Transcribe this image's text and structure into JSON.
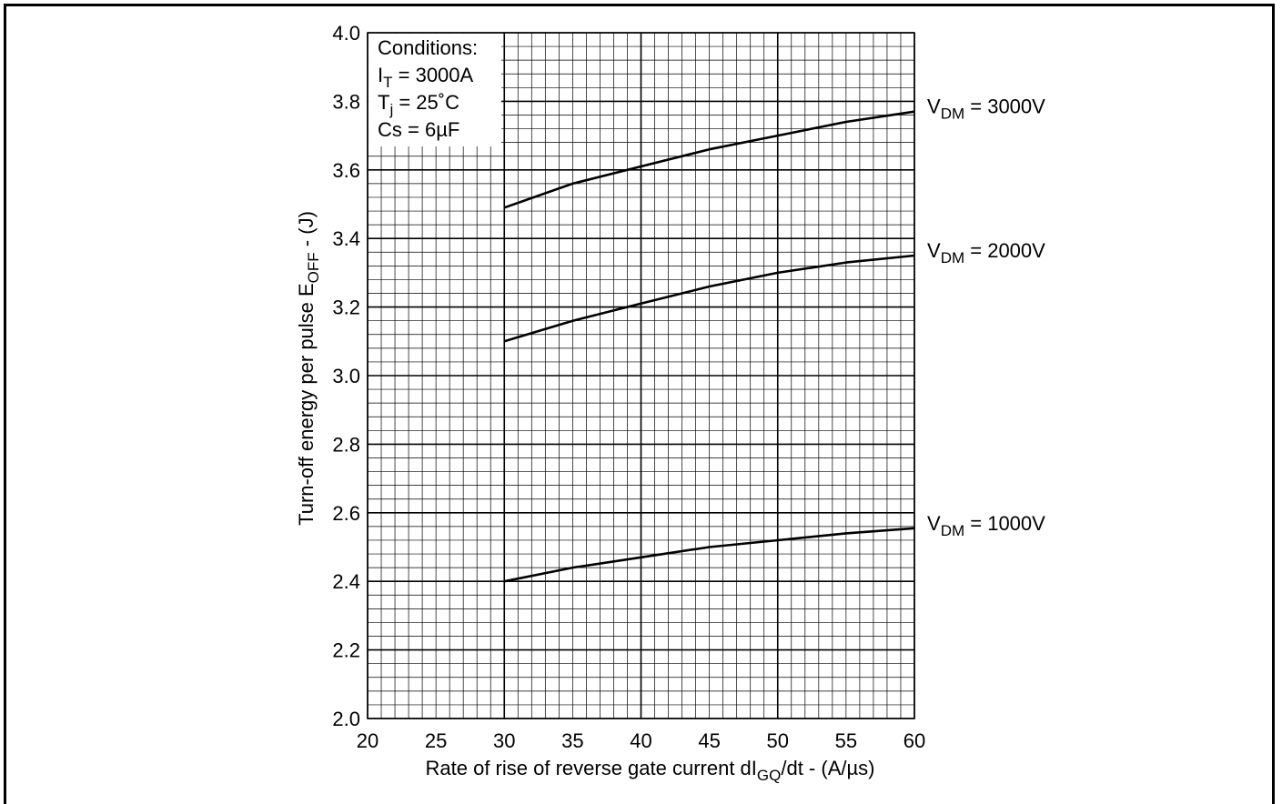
{
  "chart_data": {
    "type": "line",
    "title": "",
    "xlabel": {
      "pre": "Rate of rise of reverse gate current  dI",
      "sub": "GQ",
      "post": "/dt - (A/µs)"
    },
    "ylabel": {
      "pre": "Turn-off energy per pulse E",
      "sub": "OFF",
      "post": " - (J)"
    },
    "xlim": [
      20,
      60
    ],
    "ylim": [
      2.0,
      4.0
    ],
    "x_ticks": [
      "20",
      "25",
      "30",
      "35",
      "40",
      "45",
      "50",
      "55",
      "60"
    ],
    "y_ticks": [
      "2.0",
      "2.2",
      "2.4",
      "2.6",
      "2.8",
      "3.0",
      "3.2",
      "3.4",
      "3.6",
      "3.8",
      "4.0"
    ],
    "grid": true,
    "conditions": {
      "title": "Conditions:",
      "lines": [
        {
          "pre": "I",
          "sub": "T",
          "post": " = 3000A"
        },
        {
          "pre": "T",
          "sub": "j",
          "post": " = 25˚C"
        },
        {
          "pre": "Cs = 6µF",
          "sub": "",
          "post": ""
        }
      ]
    },
    "series": [
      {
        "name": {
          "pre": "V",
          "sub": "DM",
          "post": " = 3000V"
        },
        "x": [
          30,
          35,
          40,
          45,
          50,
          55,
          60
        ],
        "y": [
          3.49,
          3.56,
          3.61,
          3.66,
          3.7,
          3.74,
          3.77
        ]
      },
      {
        "name": {
          "pre": "V",
          "sub": "DM",
          "post": " = 2000V"
        },
        "x": [
          30,
          35,
          40,
          45,
          50,
          55,
          60
        ],
        "y": [
          3.1,
          3.16,
          3.21,
          3.26,
          3.3,
          3.33,
          3.35
        ]
      },
      {
        "name": {
          "pre": "V",
          "sub": "DM",
          "post": " = 1000V"
        },
        "x": [
          30,
          35,
          40,
          45,
          50,
          55,
          60
        ],
        "y": [
          2.4,
          2.44,
          2.47,
          2.5,
          2.52,
          2.54,
          2.555
        ]
      }
    ]
  }
}
